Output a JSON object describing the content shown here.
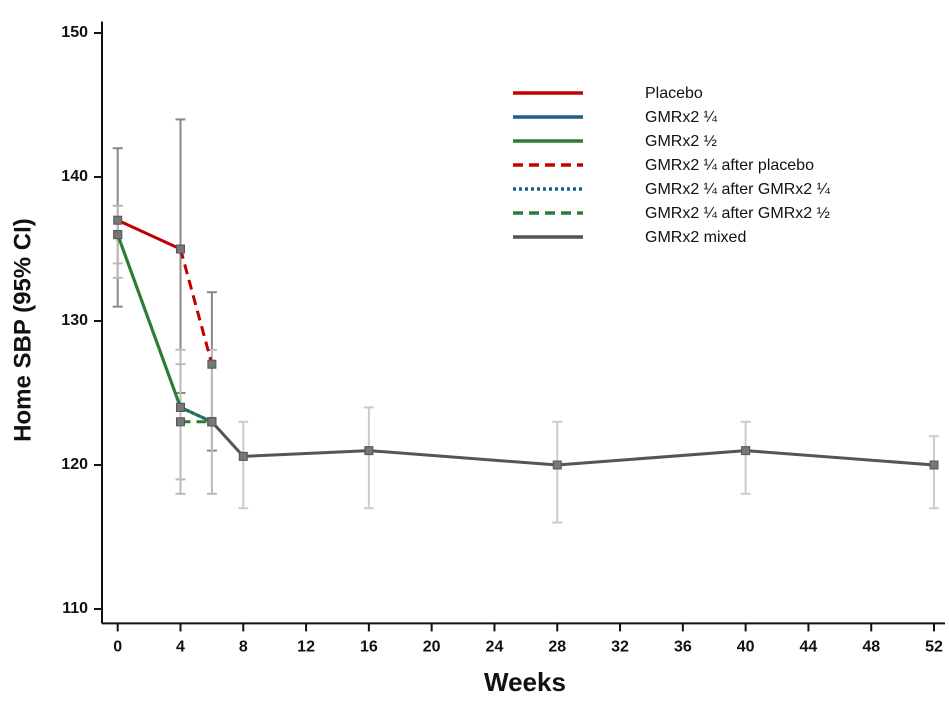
{
  "chart_data": {
    "type": "line",
    "x_label": "Weeks",
    "y_label": "Home SBP (95% CI)",
    "xlim": [
      -1,
      52.7
    ],
    "ylim": [
      109,
      150.8
    ],
    "xticks": [
      0,
      4,
      8,
      12,
      16,
      20,
      24,
      28,
      32,
      36,
      40,
      44,
      48,
      52
    ],
    "yticks": [
      110,
      120,
      130,
      140,
      150
    ],
    "grid": false,
    "legend": "upper right",
    "series": [
      {
        "name": "Placebo",
        "color": "#c00000",
        "dash": "solid",
        "ci_color": "#888888",
        "x": [
          0,
          4
        ],
        "values": [
          137,
          135
        ],
        "ci_low": [
          131,
          125
        ],
        "ci_high": [
          142,
          144
        ]
      },
      {
        "name": "GMRx2 ¼",
        "color": "#1f5f8b",
        "dash": "solid",
        "ci_color": "#bbbbbb",
        "x": [
          0,
          4,
          6
        ],
        "values": [
          136,
          124,
          123
        ],
        "ci_low": [
          133,
          119,
          null
        ],
        "ci_high": [
          138,
          128,
          null
        ]
      },
      {
        "name": "GMRx2 ½",
        "color": "#2e7d32",
        "dash": "solid",
        "ci_color": "#bbbbbb",
        "x": [
          0,
          4,
          6
        ],
        "values": [
          136,
          124,
          123
        ],
        "ci_low": [
          134,
          118,
          null
        ],
        "ci_high": [
          138,
          127,
          null
        ]
      },
      {
        "name": "GMRx2 ¼ after placebo",
        "color": "#c00000",
        "dash": "dashed",
        "ci_color": "#888888",
        "x": [
          4,
          6
        ],
        "values": [
          135,
          127
        ],
        "ci_low": [
          null,
          121
        ],
        "ci_high": [
          null,
          132
        ]
      },
      {
        "name": "GMRx2 ¼ after GMRx2 ¼",
        "color": "#1f5f8b",
        "dash": "dotted",
        "ci_color": "#bbbbbb",
        "x": [
          4,
          6
        ],
        "values": [
          124,
          123
        ],
        "ci_low": [
          null,
          118
        ],
        "ci_high": [
          null,
          128
        ]
      },
      {
        "name": "GMRx2 ¼ after GMRx2 ½",
        "color": "#2e7d32",
        "dash": "dashed",
        "ci_color": "#bbbbbb",
        "x": [
          4,
          6
        ],
        "values": [
          123,
          123
        ],
        "ci_low": [
          null,
          null
        ],
        "ci_high": [
          null,
          null
        ]
      },
      {
        "name": "GMRx2 mixed",
        "color": "#555555",
        "dash": "solid",
        "ci_color": "#cccccc",
        "x": [
          6,
          8,
          16,
          28,
          40,
          52
        ],
        "values": [
          123,
          120.6,
          121,
          120,
          121,
          120
        ],
        "ci_low": [
          null,
          117,
          117,
          116,
          118,
          117
        ],
        "ci_high": [
          null,
          123,
          124,
          123,
          123,
          122
        ]
      }
    ]
  }
}
